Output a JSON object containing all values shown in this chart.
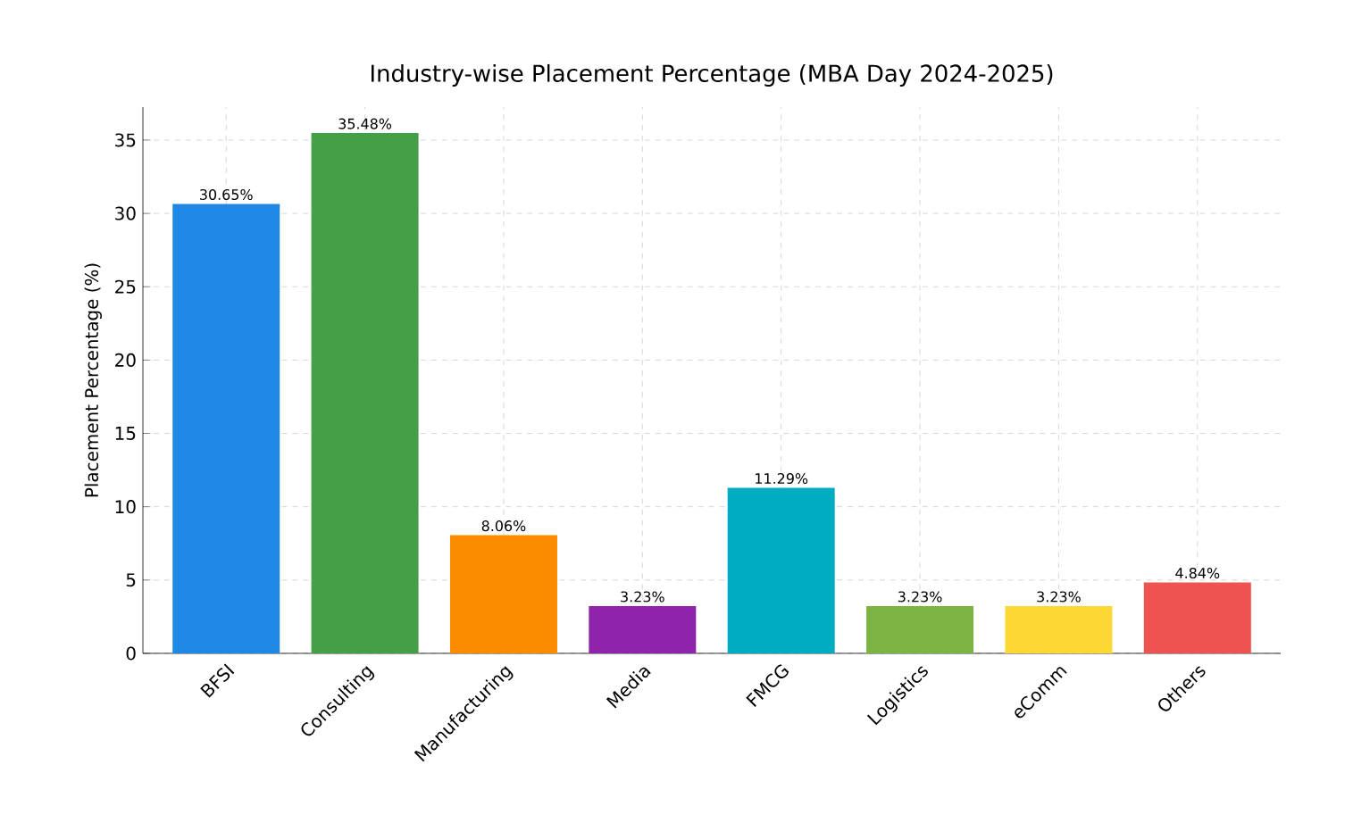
{
  "chart_data": {
    "type": "bar",
    "title": "Industry-wise Placement Percentage (MBA Day 2024-2025)",
    "ylabel": "Placement Percentage (%)",
    "categories": [
      "BFSI",
      "Consulting",
      "Manufacturing",
      "Media",
      "FMCG",
      "Logistics",
      "eComm",
      "Others"
    ],
    "values": [
      30.65,
      35.48,
      8.06,
      3.23,
      11.29,
      3.23,
      3.23,
      4.84
    ],
    "value_labels": [
      "30.65%",
      "35.48%",
      "8.06%",
      "3.23%",
      "11.29%",
      "3.23%",
      "3.23%",
      "4.84%"
    ],
    "colors": [
      "#1e88e5",
      "#43a047",
      "#fb8c00",
      "#8e24aa",
      "#00acc1",
      "#7cb342",
      "#fdd835",
      "#ef5350"
    ],
    "ylim": [
      0,
      37.25
    ],
    "yticks": [
      0,
      5,
      10,
      15,
      20,
      25,
      30,
      35
    ],
    "grid": true
  }
}
